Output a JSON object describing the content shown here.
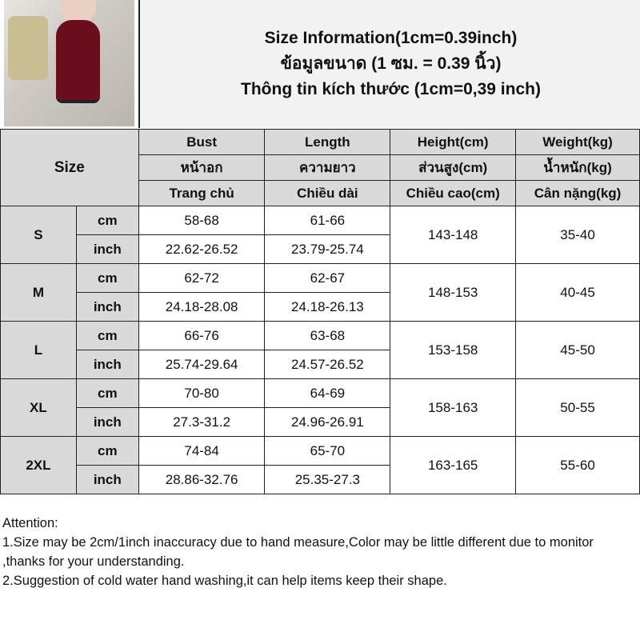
{
  "title": {
    "line1": "Size Information(1cm=0.39inch)",
    "line2": "ข้อมูลขนาด (1 ซม. = 0.39 นิ้ว)",
    "line3": "Thông tin kích thước (1cm=0,39 inch)"
  },
  "header": {
    "size": "Size",
    "cols": [
      {
        "en": "Bust",
        "th": "หน้าอก",
        "vi": "Trang chủ"
      },
      {
        "en": "Length",
        "th": "ความยาว",
        "vi": "Chiều dài"
      },
      {
        "en": "Height(cm)",
        "th": "ส่วนสูง(cm)",
        "vi": "Chiều cao(cm)"
      },
      {
        "en": "Weight(kg)",
        "th": "น้ำหนัก(kg)",
        "vi": "Cân nặng(kg)"
      }
    ]
  },
  "units": {
    "cm": "cm",
    "inch": "inch"
  },
  "rows": [
    {
      "size": "S",
      "bust_cm": "58-68",
      "length_cm": "61-66",
      "bust_in": "22.62-26.52",
      "length_in": "23.79-25.74",
      "height": "143-148",
      "weight": "35-40"
    },
    {
      "size": "M",
      "bust_cm": "62-72",
      "length_cm": "62-67",
      "bust_in": "24.18-28.08",
      "length_in": "24.18-26.13",
      "height": "148-153",
      "weight": "40-45"
    },
    {
      "size": "L",
      "bust_cm": "66-76",
      "length_cm": "63-68",
      "bust_in": "25.74-29.64",
      "length_in": "24.57-26.52",
      "height": "153-158",
      "weight": "45-50"
    },
    {
      "size": "XL",
      "bust_cm": "70-80",
      "length_cm": "64-69",
      "bust_in": "27.3-31.2",
      "length_in": "24.96-26.91",
      "height": "158-163",
      "weight": "50-55"
    },
    {
      "size": "2XL",
      "bust_cm": "74-84",
      "length_cm": "65-70",
      "bust_in": "28.86-32.76",
      "length_in": "25.35-27.3",
      "height": "163-165",
      "weight": "55-60"
    }
  ],
  "notes": {
    "heading": "Attention:",
    "n1": "1.Size may be 2cm/1inch inaccuracy due to hand measure,Color may be little different due to monitor ,thanks for your understanding.",
    "n2": "2.Suggestion of cold water hand washing,it can help items keep their shape."
  }
}
